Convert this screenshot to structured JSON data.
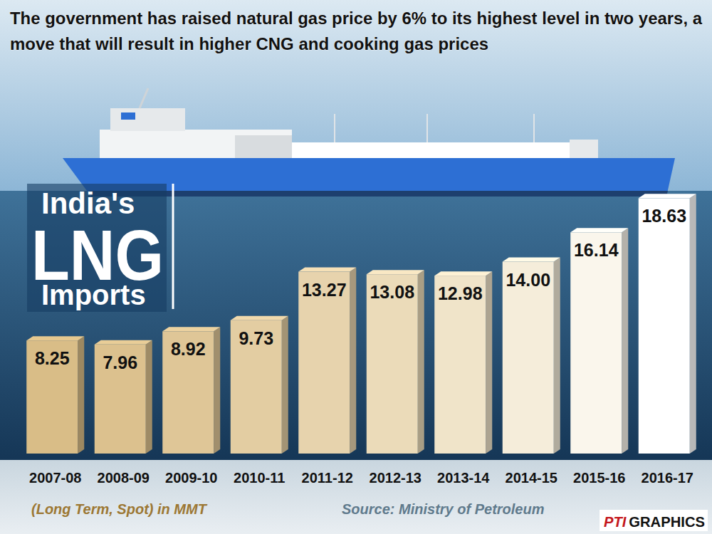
{
  "chart_data": {
    "type": "bar",
    "title": "The government has raised natural gas price by 6% to its highest level in two years, a move that will result in higher CNG and cooking gas prices",
    "subtitle": "India's LNG Imports",
    "note": "(Long Term, Spot) in MMT",
    "source": "Source: Ministry of Petroleum",
    "credit": "PTI GRAPHICS",
    "categories": [
      "2007-08",
      "2008-09",
      "2009-10",
      "2010-11",
      "2011-12",
      "2012-13",
      "2013-14",
      "2014-15",
      "2015-16",
      "2016-17"
    ],
    "values": [
      8.25,
      7.96,
      8.92,
      9.73,
      13.27,
      13.08,
      12.98,
      14.0,
      16.14,
      18.63
    ],
    "value_labels": [
      "8.25",
      "7.96",
      "8.92",
      "9.73",
      "13.27",
      "13.08",
      "12.98",
      "14.00",
      "16.14",
      "18.63"
    ],
    "colors": [
      "#d9bd87",
      "#dcc18e",
      "#dfc697",
      "#e3cda2",
      "#e7d3ad",
      "#ebdbb9",
      "#f0e4c9",
      "#f5edda",
      "#faf6ec",
      "#ffffff"
    ],
    "ylim": [
      0,
      20
    ],
    "grid": false,
    "data_labels": true,
    "tick_labels": "x"
  }
}
